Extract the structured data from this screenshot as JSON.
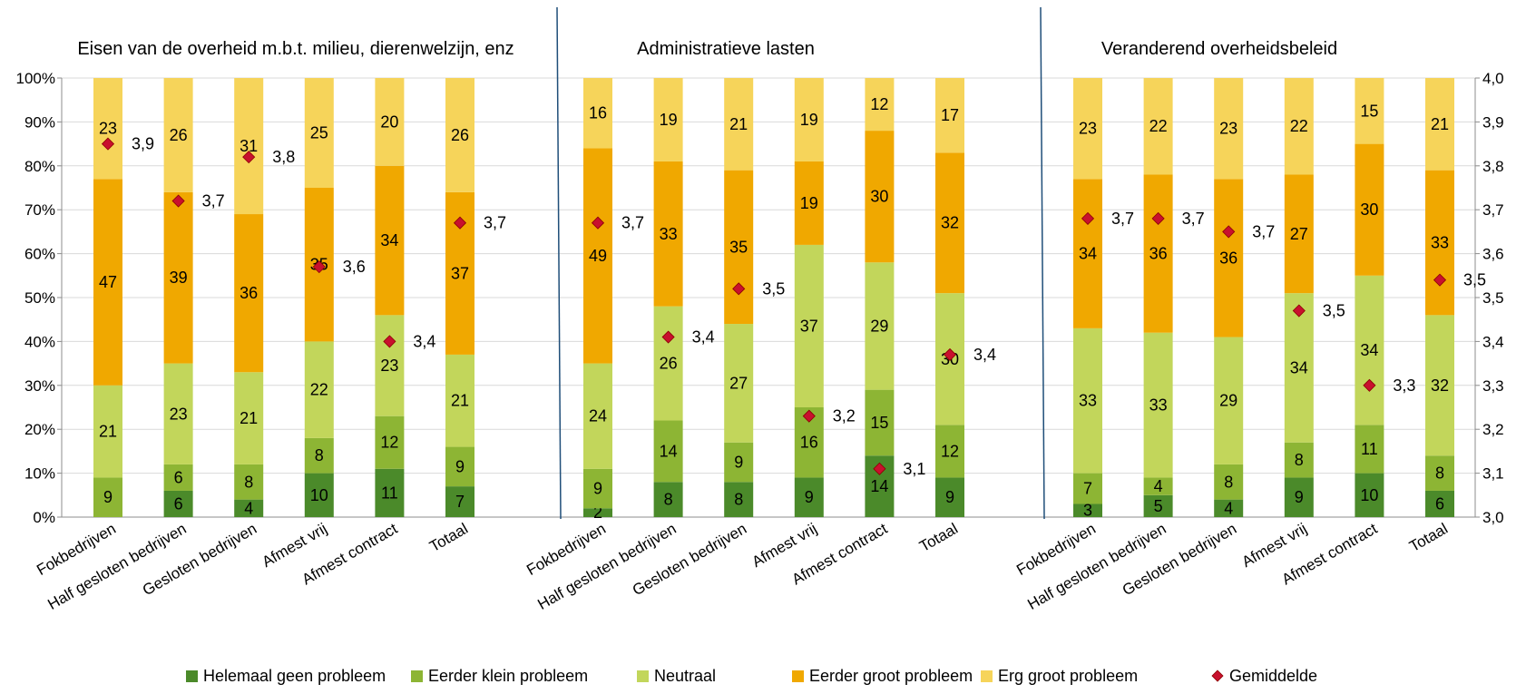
{
  "chart_data": {
    "type": "bar",
    "stacked": true,
    "categories": [
      "Fokbedrijven",
      "Half gesloten bedrijven",
      "Gesloten bedrijven",
      "Afmest vrij",
      "Afmest contract",
      "Totaal"
    ],
    "y_left": {
      "ylim": [
        0,
        100
      ],
      "ticks": [
        "0%",
        "10%",
        "20%",
        "30%",
        "40%",
        "50%",
        "60%",
        "70%",
        "80%",
        "90%",
        "100%"
      ]
    },
    "y_right": {
      "ylim": [
        3.0,
        4.0
      ],
      "ticks": [
        "3,0",
        "3,1",
        "3,2",
        "3,3",
        "3,4",
        "3,5",
        "3,6",
        "3,7",
        "3,8",
        "3,9",
        "4,0"
      ]
    },
    "grid": true,
    "legend_position": "bottom",
    "series": [
      {
        "name": "Helemaal geen probleem",
        "color": "#4b8a2a"
      },
      {
        "name": "Eerder klein probleem",
        "color": "#8db534"
      },
      {
        "name": "Neutraal",
        "color": "#c2d65b"
      },
      {
        "name": "Eerder groot probleem",
        "color": "#f0a800"
      },
      {
        "name": "Erg groot probleem",
        "color": "#f6d45a"
      }
    ],
    "mean_series": {
      "name": "Gemiddelde",
      "color": "#c8102e"
    },
    "panels": [
      {
        "title": "Eisen van de overheid m.b.t. milieu, dierenwelzijn, enz",
        "values": [
          [
            0,
            9,
            21,
            47,
            23
          ],
          [
            6,
            6,
            23,
            39,
            26
          ],
          [
            4,
            8,
            21,
            36,
            31
          ],
          [
            10,
            8,
            22,
            35,
            25
          ],
          [
            11,
            12,
            23,
            34,
            20
          ],
          [
            7,
            9,
            21,
            37,
            26
          ]
        ],
        "means": [
          3.85,
          3.72,
          3.82,
          3.57,
          3.4,
          3.67
        ],
        "mean_labels": [
          "3,9",
          "3,7",
          "3,8",
          "3,6",
          "3,4",
          "3,7"
        ]
      },
      {
        "title": "Administratieve lasten",
        "values": [
          [
            2,
            9,
            24,
            49,
            16
          ],
          [
            8,
            14,
            26,
            33,
            19
          ],
          [
            8,
            9,
            27,
            35,
            21
          ],
          [
            9,
            16,
            37,
            19,
            19
          ],
          [
            14,
            15,
            29,
            30,
            12
          ],
          [
            9,
            12,
            30,
            32,
            17
          ]
        ],
        "means": [
          3.67,
          3.41,
          3.52,
          3.23,
          3.11,
          3.37
        ],
        "mean_labels": [
          "3,7",
          "3,4",
          "3,5",
          "3,2",
          "3,1",
          "3,4"
        ]
      },
      {
        "title": "Veranderend overheidsbeleid",
        "values": [
          [
            3,
            7,
            33,
            34,
            23
          ],
          [
            5,
            4,
            33,
            36,
            22
          ],
          [
            4,
            8,
            29,
            36,
            23
          ],
          [
            9,
            8,
            34,
            27,
            22
          ],
          [
            10,
            11,
            34,
            30,
            15
          ],
          [
            6,
            8,
            32,
            33,
            21
          ]
        ],
        "means": [
          3.68,
          3.68,
          3.65,
          3.47,
          3.3,
          3.54
        ],
        "mean_labels": [
          "3,7",
          "3,7",
          "3,7",
          "3,5",
          "3,3",
          "3,5"
        ]
      }
    ]
  }
}
